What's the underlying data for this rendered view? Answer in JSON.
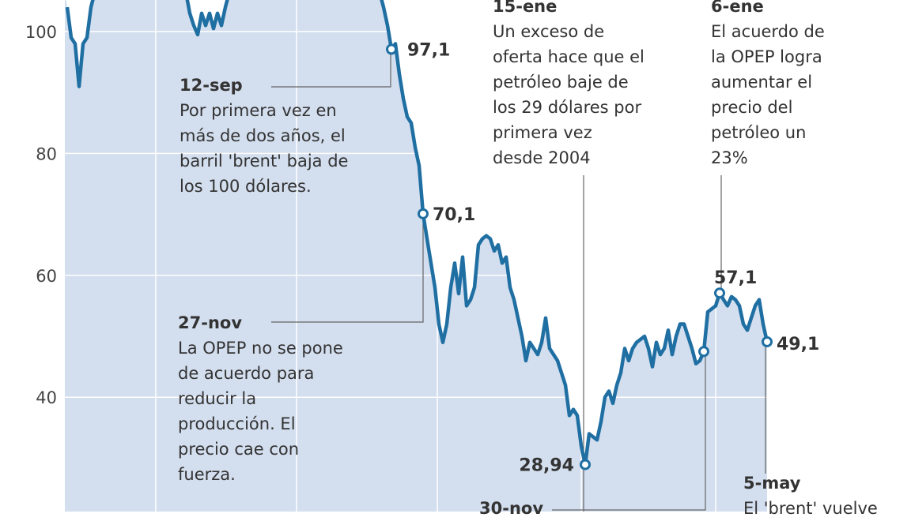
{
  "chart_data": {
    "type": "area",
    "title": "",
    "xlabel": "",
    "ylabel": "",
    "ylim": [
      22,
      105
    ],
    "yticks": [
      "100",
      "80",
      "60",
      "40"
    ],
    "ytick_values": [
      100,
      80,
      60,
      40
    ],
    "grid": true,
    "colors": {
      "line": "#1f6fa3",
      "fill": "#d3deee",
      "grid": "#ffffff",
      "text": "#333333"
    },
    "values": [
      104,
      99,
      98,
      91,
      98,
      99,
      104,
      108,
      108,
      108,
      108,
      108,
      108,
      108,
      108,
      108,
      108,
      108,
      108,
      108,
      108,
      108,
      108,
      108,
      108,
      108,
      108,
      108,
      108,
      108,
      108,
      103,
      101,
      99.5,
      103,
      101,
      103,
      100.5,
      103,
      101,
      104,
      108,
      108,
      108,
      108,
      108,
      108,
      108,
      108,
      108,
      108,
      108,
      108,
      108,
      108,
      108,
      108,
      108,
      108,
      108,
      108,
      108,
      108,
      108,
      108,
      108,
      108,
      108,
      108,
      108,
      108,
      108,
      108,
      108,
      108,
      108,
      108,
      108,
      108,
      108,
      104,
      101,
      97.1,
      98,
      93,
      89,
      86,
      85,
      81,
      78,
      70.1,
      66,
      62,
      58,
      52,
      49,
      52,
      58,
      62,
      57,
      63,
      55,
      56,
      58,
      65,
      66,
      66.5,
      66,
      64,
      65,
      62,
      63,
      58,
      56,
      53,
      50,
      46,
      49,
      48,
      47,
      49,
      53,
      48,
      47,
      46,
      44,
      42,
      37,
      38,
      37,
      32,
      28.94,
      34,
      33.5,
      33,
      36,
      40,
      41,
      39,
      42,
      44,
      48,
      46,
      48,
      49,
      49.5,
      50,
      48,
      45,
      49,
      47,
      48,
      51,
      47,
      50,
      52,
      52,
      50,
      48,
      45.5,
      46,
      47.5,
      54,
      54.5,
      55,
      57.1,
      56,
      55,
      56.5,
      56,
      55,
      52,
      51,
      53,
      55,
      56,
      52,
      49.1
    ],
    "markers": [
      {
        "index": 82,
        "label": "97,1"
      },
      {
        "index": 90,
        "label": "70,1"
      },
      {
        "index": 131,
        "label": "28,94"
      },
      {
        "index": 161,
        "label": ""
      },
      {
        "index": 165,
        "label": "57,1"
      },
      {
        "index": 177,
        "label": "49,1"
      }
    ],
    "annotations": [
      {
        "date": "12-sep",
        "text": [
          "Por primera vez en",
          "más de dos años, el",
          "barril 'brent' baja de",
          "los 100 dólares."
        ]
      },
      {
        "date": "27-nov",
        "text": [
          "La OPEP no se pone",
          "de acuerdo para",
          "reducir la",
          "producción. El",
          "precio cae con",
          "fuerza."
        ]
      },
      {
        "date": "15-ene",
        "text": [
          "Un exceso de",
          "oferta hace que el",
          "petróleo baje de",
          "los 29 dólares por",
          "primera vez",
          "desde 2004"
        ]
      },
      {
        "date": "6-ene",
        "text": [
          "El acuerdo de",
          "la OPEP logra",
          "aumentar el",
          "precio del",
          "petróleo un",
          "23%"
        ]
      },
      {
        "date": "30-nov",
        "text": []
      },
      {
        "date": "5-may",
        "text": [
          "El 'brent' vuelve"
        ]
      }
    ]
  }
}
